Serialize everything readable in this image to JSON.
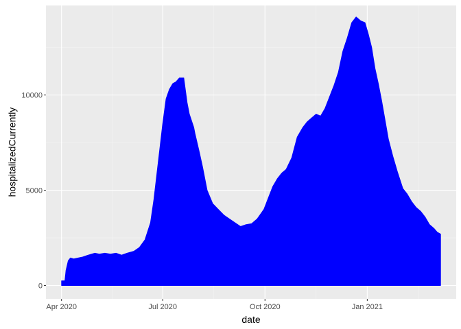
{
  "chart_data": {
    "type": "area",
    "xlabel": "date",
    "ylabel": "hospitalizedCurrently",
    "x_ticks": [
      {
        "date": "2020-04-01",
        "label": "Apr 2020"
      },
      {
        "date": "2020-07-01",
        "label": "Jul 2020"
      },
      {
        "date": "2020-10-01",
        "label": "Oct 2020"
      },
      {
        "date": "2021-01-01",
        "label": "Jan 2021"
      }
    ],
    "y_ticks": [
      {
        "value": 0,
        "label": "0"
      },
      {
        "value": 5000,
        "label": "5000"
      },
      {
        "value": 10000,
        "label": "10000"
      }
    ],
    "xlim": [
      "2020-03-18",
      "2021-03-22"
    ],
    "ylim": [
      -700,
      14700
    ],
    "grid": true,
    "fill_color": "#0000ff",
    "panel_color": "#ebebeb",
    "series": [
      {
        "x": [
          "2020-04-01",
          "2020-04-04",
          "2020-04-05",
          "2020-04-07",
          "2020-04-09",
          "2020-04-12",
          "2020-04-16",
          "2020-04-20",
          "2020-04-25",
          "2020-05-01",
          "2020-05-05",
          "2020-05-10",
          "2020-05-15",
          "2020-05-20",
          "2020-05-25",
          "2020-05-30",
          "2020-06-05",
          "2020-06-10",
          "2020-06-15",
          "2020-06-20",
          "2020-06-23",
          "2020-06-25",
          "2020-06-28",
          "2020-07-01",
          "2020-07-04",
          "2020-07-07",
          "2020-07-10",
          "2020-07-13",
          "2020-07-16",
          "2020-07-20",
          "2020-07-23",
          "2020-07-25",
          "2020-07-29",
          "2020-07-30",
          "2020-08-03",
          "2020-08-06",
          "2020-08-10",
          "2020-08-15",
          "2020-08-20",
          "2020-08-25",
          "2020-08-30",
          "2020-09-04",
          "2020-09-09",
          "2020-09-14",
          "2020-09-19",
          "2020-09-24",
          "2020-09-30",
          "2020-10-04",
          "2020-10-08",
          "2020-10-12",
          "2020-10-16",
          "2020-10-20",
          "2020-10-25",
          "2020-10-30",
          "2020-11-04",
          "2020-11-08",
          "2020-11-12",
          "2020-11-16",
          "2020-11-20",
          "2020-11-24",
          "2020-11-28",
          "2020-12-02",
          "2020-12-06",
          "2020-12-10",
          "2020-12-14",
          "2020-12-18",
          "2020-12-22",
          "2020-12-26",
          "2020-12-30",
          "2021-01-02",
          "2021-01-05",
          "2021-01-08",
          "2021-01-11",
          "2021-01-14",
          "2021-01-17",
          "2021-01-20",
          "2021-01-24",
          "2021-01-28",
          "2021-02-02",
          "2021-02-06",
          "2021-02-10",
          "2021-02-14",
          "2021-02-18",
          "2021-02-22",
          "2021-02-26",
          "2021-03-02",
          "2021-03-05",
          "2021-03-08"
        ],
        "values": [
          250,
          250,
          800,
          1300,
          1450,
          1400,
          1450,
          1500,
          1600,
          1700,
          1650,
          1700,
          1650,
          1700,
          1600,
          1700,
          1800,
          2000,
          2400,
          3300,
          4500,
          5500,
          7000,
          8500,
          9800,
          10300,
          10600,
          10700,
          10900,
          10900,
          9600,
          9000,
          8300,
          8000,
          7000,
          6200,
          5000,
          4300,
          4000,
          3700,
          3500,
          3300,
          3100,
          3200,
          3250,
          3500,
          4000,
          4600,
          5200,
          5600,
          5900,
          6100,
          6700,
          7800,
          8300,
          8600,
          8800,
          9000,
          8900,
          9300,
          9900,
          10500,
          11200,
          12300,
          13000,
          13800,
          14100,
          13900,
          13800,
          13200,
          12500,
          11400,
          10600,
          9700,
          8700,
          7700,
          6800,
          6000,
          5100,
          4800,
          4400,
          4100,
          3900,
          3600,
          3200,
          3000,
          2800,
          2700
        ]
      }
    ]
  }
}
